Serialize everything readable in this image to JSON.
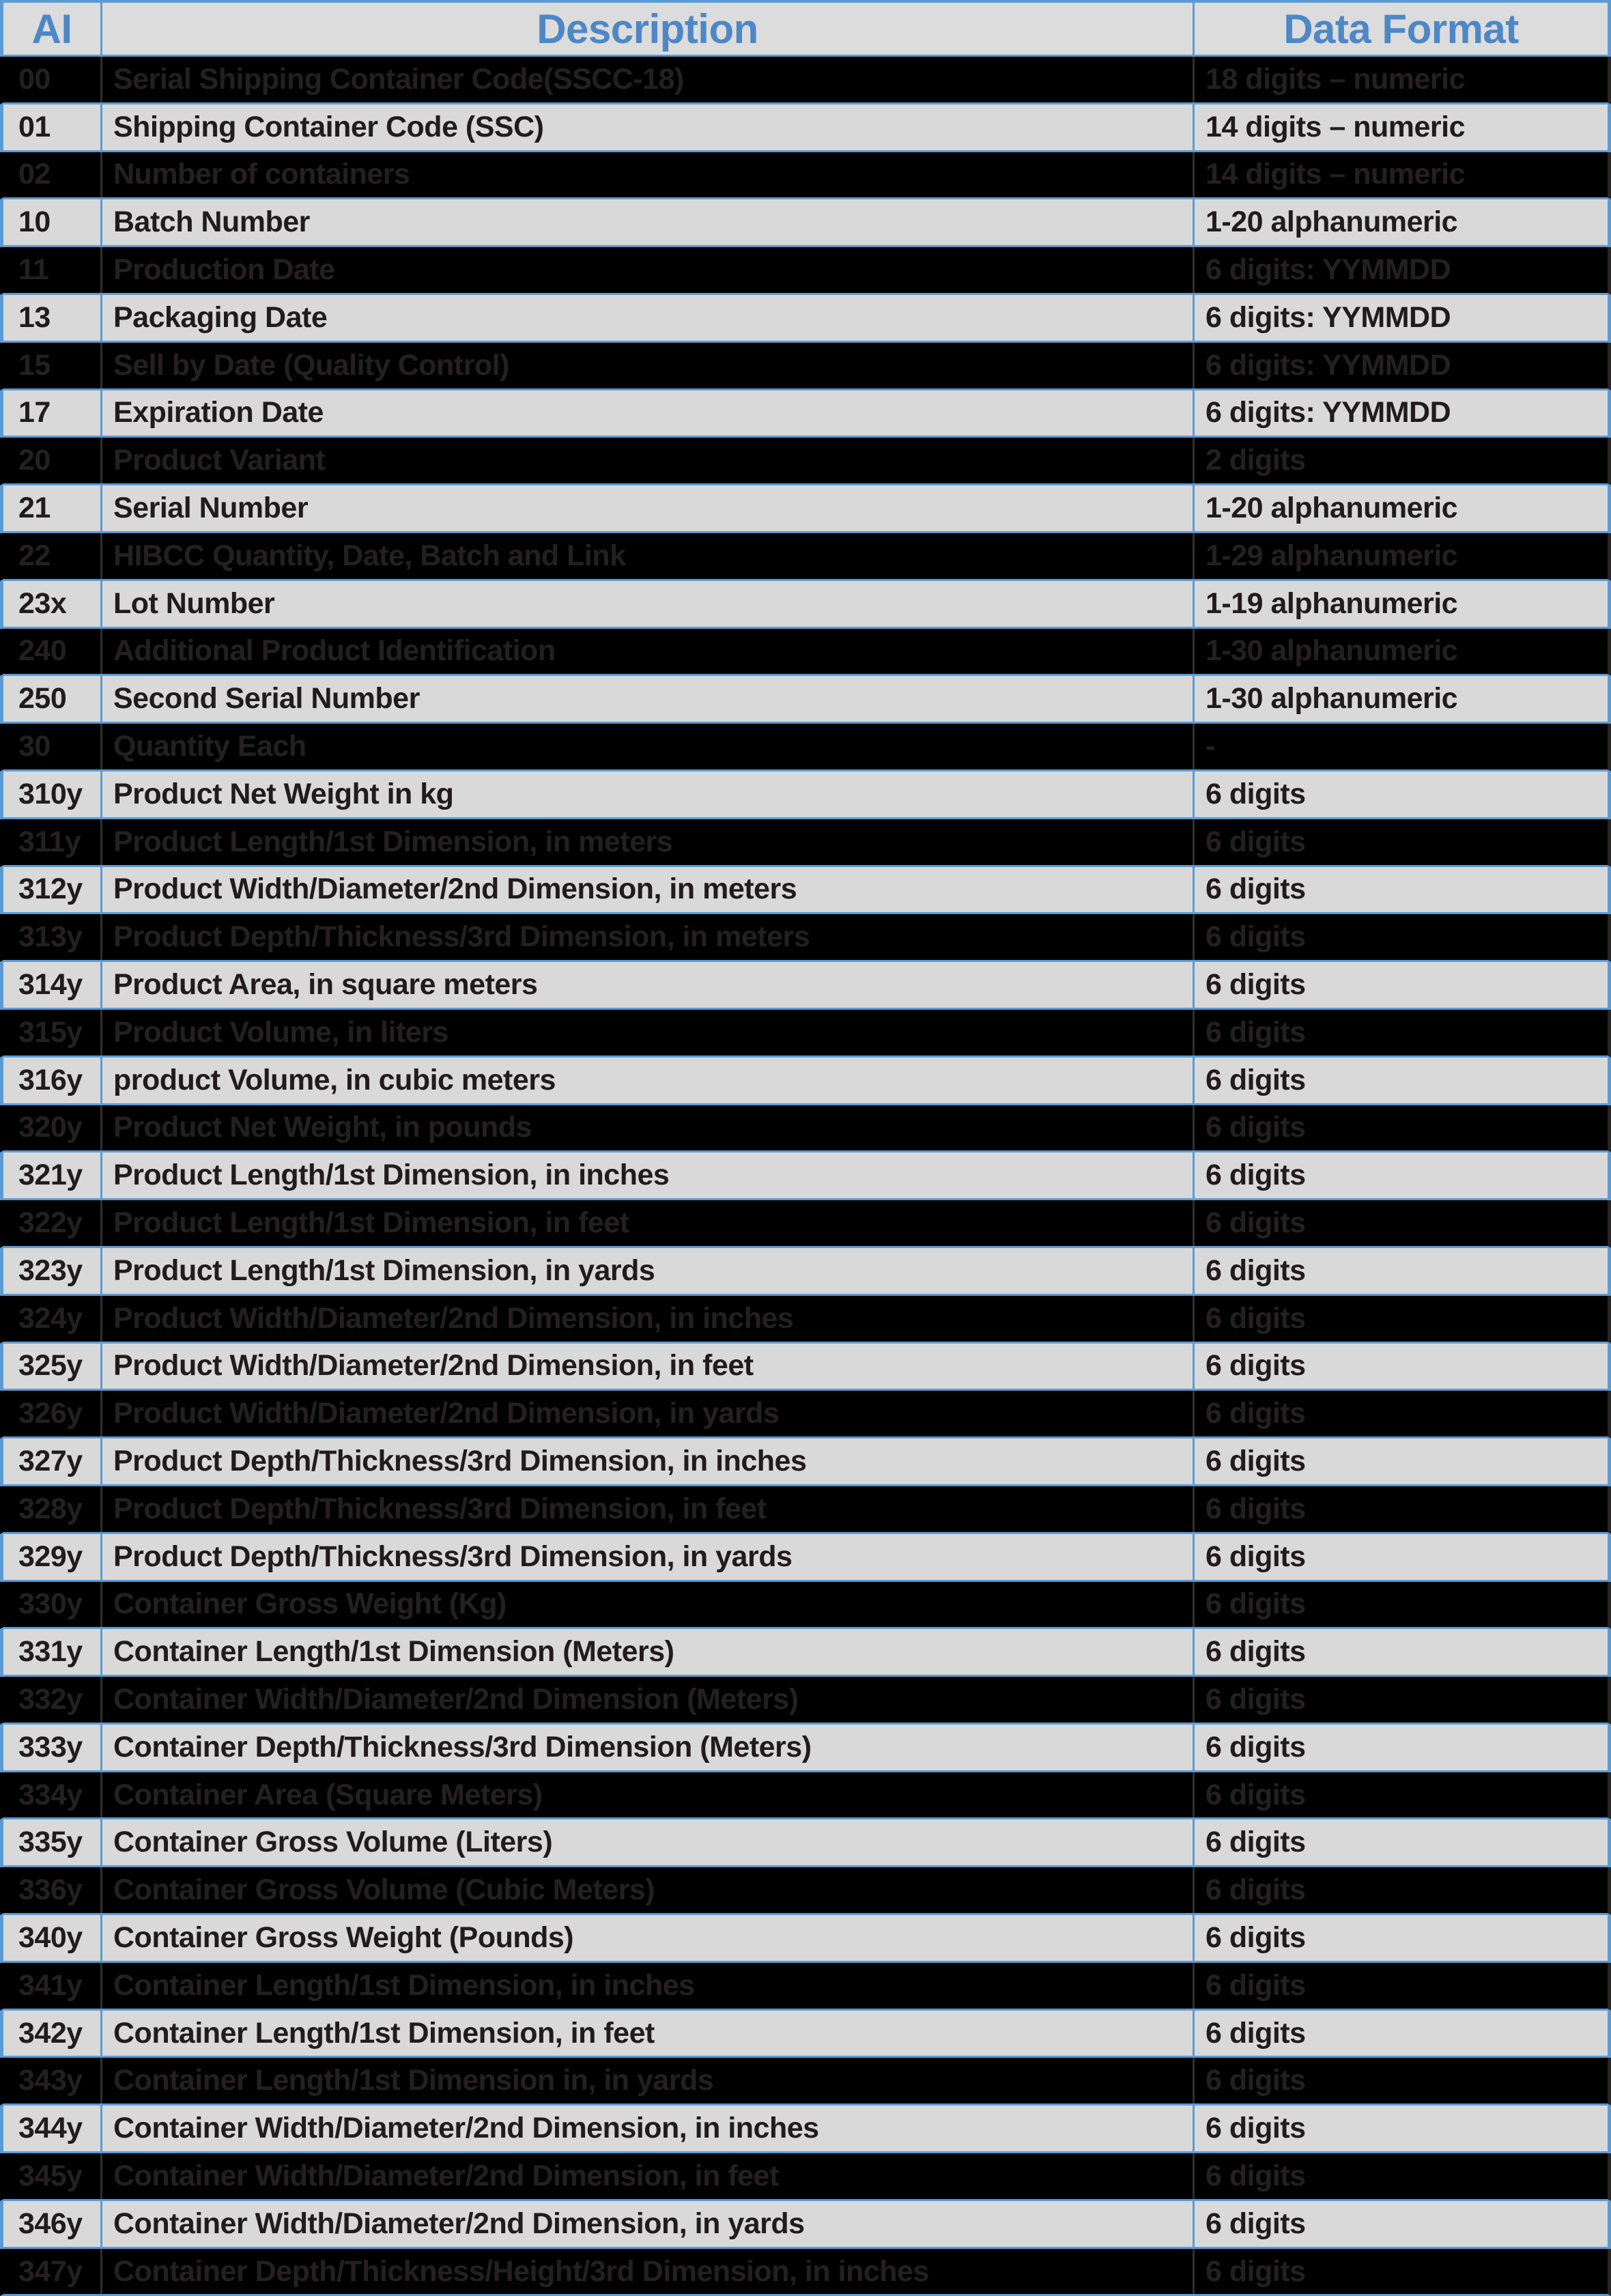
{
  "table": {
    "columns": [
      {
        "key": "ai",
        "label": "AI"
      },
      {
        "key": "description",
        "label": "Description"
      },
      {
        "key": "format",
        "label": "Data Format"
      }
    ],
    "rows": [
      {
        "ai": "00",
        "description": "Serial Shipping Container Code(SSCC-18)",
        "format": "18 digits – numeric"
      },
      {
        "ai": "01",
        "description": "Shipping Container Code (SSC)",
        "format": "14 digits – numeric"
      },
      {
        "ai": "02",
        "description": "Number of containers",
        "format": "14 digits – numeric"
      },
      {
        "ai": "10",
        "description": "Batch Number",
        "format": "1-20 alphanumeric"
      },
      {
        "ai": "11",
        "description": "Production Date",
        "format": "6 digits: YYMMDD"
      },
      {
        "ai": "13",
        "description": "Packaging Date",
        "format": "6 digits: YYMMDD"
      },
      {
        "ai": "15",
        "description": "Sell by Date (Quality Control)",
        "format": "6 digits: YYMMDD"
      },
      {
        "ai": "17",
        "description": "Expiration Date",
        "format": "6 digits: YYMMDD"
      },
      {
        "ai": "20",
        "description": "Product Variant",
        "format": "2 digits"
      },
      {
        "ai": "21",
        "description": "Serial Number",
        "format": "1-20 alphanumeric"
      },
      {
        "ai": "22",
        "description": "HIBCC Quantity, Date, Batch and Link",
        "format": "1-29 alphanumeric"
      },
      {
        "ai": "23x",
        "description": "Lot Number",
        "format": "1-19 alphanumeric"
      },
      {
        "ai": "240",
        "description": "Additional Product Identification",
        "format": "1-30 alphanumeric"
      },
      {
        "ai": "250",
        "description": "Second Serial Number",
        "format": "1-30 alphanumeric"
      },
      {
        "ai": "30",
        "description": "Quantity Each",
        "format": "-"
      },
      {
        "ai": "310y",
        "description": "Product Net Weight in kg",
        "format": "6 digits"
      },
      {
        "ai": "311y",
        "description": "Product Length/1st Dimension, in meters",
        "format": "6 digits"
      },
      {
        "ai": "312y",
        "description": "Product Width/Diameter/2nd Dimension, in meters",
        "format": "6 digits"
      },
      {
        "ai": "313y",
        "description": "Product Depth/Thickness/3rd Dimension, in meters",
        "format": "6 digits"
      },
      {
        "ai": "314y",
        "description": "Product Area, in square meters",
        "format": "6 digits"
      },
      {
        "ai": "315y",
        "description": "Product Volume, in liters",
        "format": "6 digits"
      },
      {
        "ai": "316y",
        "description": "product Volume, in cubic meters",
        "format": "6 digits"
      },
      {
        "ai": "320y",
        "description": "Product Net Weight, in pounds",
        "format": "6 digits"
      },
      {
        "ai": "321y",
        "description": "Product Length/1st Dimension, in inches",
        "format": "6 digits"
      },
      {
        "ai": "322y",
        "description": "Product Length/1st Dimension, in feet",
        "format": "6 digits"
      },
      {
        "ai": "323y",
        "description": "Product Length/1st Dimension, in yards",
        "format": "6 digits"
      },
      {
        "ai": "324y",
        "description": "Product Width/Diameter/2nd Dimension, in inches",
        "format": "6 digits"
      },
      {
        "ai": "325y",
        "description": "Product Width/Diameter/2nd Dimension, in feet",
        "format": "6 digits"
      },
      {
        "ai": "326y",
        "description": "Product Width/Diameter/2nd Dimension, in yards",
        "format": "6 digits"
      },
      {
        "ai": "327y",
        "description": "Product Depth/Thickness/3rd Dimension, in inches",
        "format": "6 digits"
      },
      {
        "ai": "328y",
        "description": "Product Depth/Thickness/3rd Dimension, in feet",
        "format": "6 digits"
      },
      {
        "ai": "329y",
        "description": "Product Depth/Thickness/3rd Dimension, in yards",
        "format": "6 digits"
      },
      {
        "ai": "330y",
        "description": "Container Gross Weight (Kg)",
        "format": "6 digits"
      },
      {
        "ai": "331y",
        "description": "Container Length/1st Dimension (Meters)",
        "format": "6 digits"
      },
      {
        "ai": "332y",
        "description": "Container Width/Diameter/2nd Dimension (Meters)",
        "format": "6 digits"
      },
      {
        "ai": "333y",
        "description": "Container Depth/Thickness/3rd Dimension (Meters)",
        "format": "6 digits"
      },
      {
        "ai": "334y",
        "description": "Container Area (Square Meters)",
        "format": "6 digits"
      },
      {
        "ai": "335y",
        "description": "Container Gross Volume (Liters)",
        "format": "6 digits"
      },
      {
        "ai": "336y",
        "description": "Container Gross Volume (Cubic Meters)",
        "format": "6 digits"
      },
      {
        "ai": "340y",
        "description": "Container Gross Weight (Pounds)",
        "format": "6 digits"
      },
      {
        "ai": "341y",
        "description": "Container Length/1st Dimension, in inches",
        "format": "6 digits"
      },
      {
        "ai": "342y",
        "description": "Container Length/1st Dimension, in feet",
        "format": "6 digits"
      },
      {
        "ai": "343y",
        "description": "Container Length/1st Dimension in, in yards",
        "format": "6 digits"
      },
      {
        "ai": "344y",
        "description": "Container Width/Diameter/2nd Dimension, in inches",
        "format": "6 digits"
      },
      {
        "ai": "345y",
        "description": "Container Width/Diameter/2nd Dimension, in feet",
        "format": "6 digits"
      },
      {
        "ai": "346y",
        "description": "Container Width/Diameter/2nd Dimension, in yards",
        "format": "6 digits"
      },
      {
        "ai": "347y",
        "description": "Container Depth/Thickness/Height/3rd Dimension, in inches",
        "format": "6 digits"
      }
    ]
  },
  "colors": {
    "header_text": "#4e87c6",
    "grid_blue": "#5b9bd5",
    "header_bg": "#dcdcdc",
    "row_light_bg": "#d9d9d9",
    "row_dark_bg": "#000000",
    "row_light_text": "#201c1d",
    "row_dark_text": "#242021"
  }
}
